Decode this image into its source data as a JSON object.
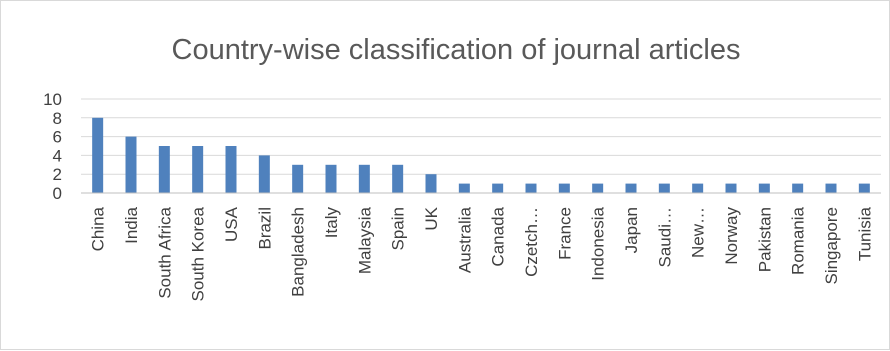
{
  "chart_data": {
    "type": "bar",
    "title": "Country-wise classification of journal articles",
    "xlabel": "",
    "ylabel": "",
    "ylim": [
      0,
      10
    ],
    "yticks": [
      0,
      2,
      4,
      6,
      8,
      10
    ],
    "grid": true,
    "legend": "none",
    "bar_color": "#4f81bd",
    "categories": [
      "China",
      "India",
      "South Africa",
      "South Korea",
      "USA",
      "Brazil",
      "Bangladesh",
      "Italy",
      "Malaysia",
      "Spain",
      "UK",
      "Australia",
      "Canada",
      "Czetch…",
      "France",
      "Indonesia",
      "Japan",
      "Saudi…",
      "New…",
      "Norway",
      "Pakistan",
      "Romania",
      "Singapore",
      "Tunisia"
    ],
    "values": [
      8,
      6,
      5,
      5,
      5,
      4,
      3,
      3,
      3,
      3,
      2,
      1,
      1,
      1,
      1,
      1,
      1,
      1,
      1,
      1,
      1,
      1,
      1,
      1
    ]
  }
}
